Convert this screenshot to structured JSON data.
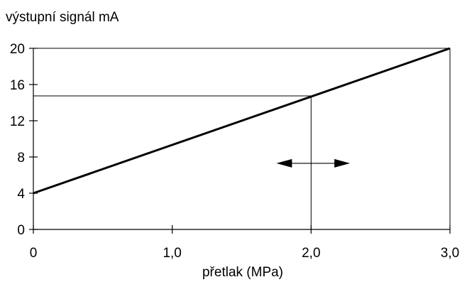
{
  "chart_data": {
    "type": "line",
    "ylabel": "výstupní signál mA",
    "xlabel": "přetlak  (MPa)",
    "xlim": [
      0,
      3
    ],
    "ylim": [
      0,
      20
    ],
    "x_ticks": [
      0,
      1,
      2,
      3
    ],
    "x_tick_labels": [
      "0",
      "1,0",
      "2,0",
      "3,0"
    ],
    "y_ticks": [
      0,
      4,
      8,
      12,
      16,
      20
    ],
    "y_tick_labels": [
      "0",
      "4",
      "8",
      "12",
      "16",
      "20"
    ],
    "grid": false,
    "series": [
      {
        "x": [
          0,
          3
        ],
        "y": [
          4,
          20
        ]
      }
    ],
    "reference_lines": [
      {
        "axis": "x",
        "value": 2,
        "y_to": 14.75
      },
      {
        "axis": "y",
        "value": 14.75,
        "x_to": 2
      },
      {
        "axis": "x",
        "value": 3,
        "y_to": 20
      },
      {
        "axis": "y",
        "value": 20,
        "x_to": 3
      }
    ],
    "annotations": [
      {
        "type": "double-arrow",
        "x_from": 1.75,
        "x_to": 2.28,
        "y": 7.3
      }
    ]
  }
}
